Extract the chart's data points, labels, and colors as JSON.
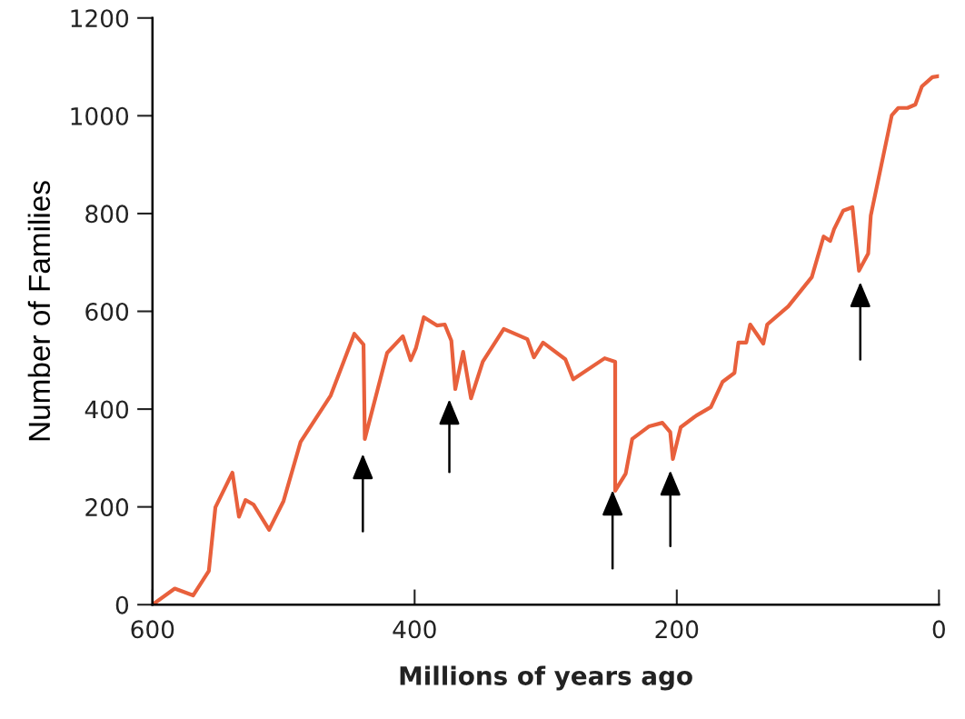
{
  "chart_data": {
    "type": "line",
    "xlabel": "Millions of years ago",
    "ylabel": "Number of Families",
    "x": [
      600,
      583,
      569,
      557,
      552,
      539,
      534,
      529,
      523,
      511,
      500,
      487,
      464,
      446,
      439,
      438,
      421,
      409,
      403,
      399,
      393,
      383,
      377,
      372,
      369,
      363,
      357,
      348,
      332,
      314,
      309,
      302,
      285,
      279,
      255,
      247,
      247,
      239,
      234,
      221,
      211,
      205,
      203,
      197,
      185,
      174,
      165,
      156,
      153,
      147,
      144,
      134,
      131,
      115,
      97,
      88,
      83,
      80,
      73,
      66,
      61,
      54,
      52,
      36,
      31,
      24,
      18,
      13,
      5,
      0
    ],
    "series": [
      {
        "color": "#e8603c",
        "values": [
          0,
          33,
          19,
          69,
          199,
          270,
          180,
          214,
          205,
          153,
          212,
          333,
          428,
          554,
          532,
          339,
          515,
          549,
          500,
          525,
          588,
          571,
          573,
          540,
          441,
          517,
          422,
          497,
          564,
          543,
          506,
          536,
          502,
          461,
          504,
          497,
          233,
          268,
          339,
          365,
          372,
          353,
          298,
          363,
          387,
          404,
          456,
          474,
          536,
          536,
          573,
          534,
          573,
          610,
          670,
          753,
          744,
          768,
          806,
          813,
          683,
          718,
          796,
          1001,
          1016,
          1016,
          1023,
          1060,
          1079,
          1081
        ]
      }
    ],
    "xlim": [
      600,
      0
    ],
    "xticks": [
      600,
      400,
      200,
      0
    ],
    "ylim": [
      0,
      1200
    ],
    "yticks": [
      0,
      200,
      400,
      600,
      800,
      1000,
      1200
    ],
    "grid": false,
    "marker": "none",
    "line_style": "solid"
  }
}
